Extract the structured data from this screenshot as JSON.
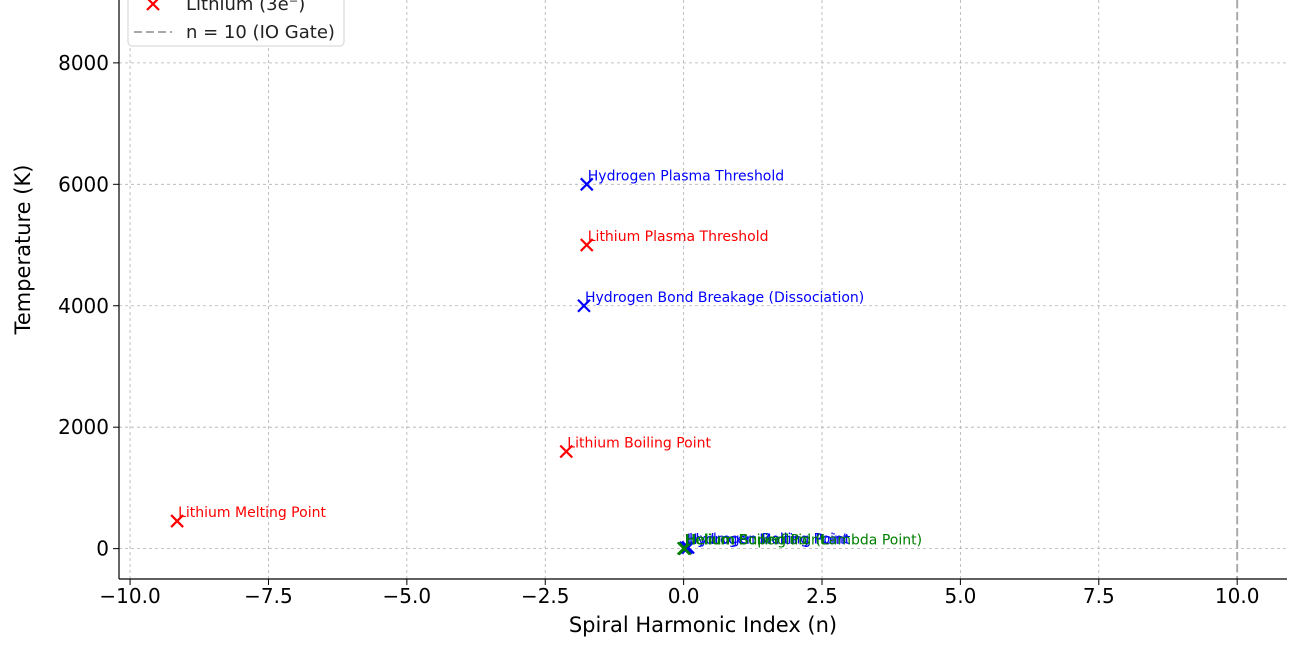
{
  "chart_data": {
    "type": "scatter",
    "xlabel": "Spiral Harmonic Index (n)",
    "ylabel": "Temperature (K)",
    "xlim": [
      -10.2,
      10.9
    ],
    "ylim": [
      -500,
      9200
    ],
    "x_ticks": [
      -10.0,
      -7.5,
      -5.0,
      -2.5,
      0.0,
      2.5,
      5.0,
      7.5,
      10.0
    ],
    "x_tick_labels": [
      "−10.0",
      "−7.5",
      "−5.0",
      "−2.5",
      "0.0",
      "2.5",
      "5.0",
      "7.5",
      "10.0"
    ],
    "y_ticks": [
      0,
      2000,
      4000,
      6000,
      8000
    ],
    "y_tick_labels": [
      "0",
      "2000",
      "4000",
      "6000",
      "8000"
    ],
    "grid": true,
    "legend_position": "top-left",
    "series": [
      {
        "name": "",
        "color": "#0000ff",
        "marker": "x",
        "points": [
          {
            "x": -1.75,
            "y": 6000,
            "label": "Hydrogen Plasma Threshold"
          },
          {
            "x": -1.8,
            "y": 4000,
            "label": "Hydrogen Bond Breakage (Dissociation)"
          },
          {
            "x": 0.08,
            "y": 20,
            "label": "Hydrogen Boiling Point"
          },
          {
            "x": 0.04,
            "y": 14,
            "label": "Hydrogen Melting Point"
          }
        ]
      },
      {
        "name": "Lithium (3e⁻)",
        "color": "#ff0000",
        "marker": "x",
        "points": [
          {
            "x": -1.75,
            "y": 5000,
            "label": "Lithium Plasma Threshold"
          },
          {
            "x": -2.12,
            "y": 1600,
            "label": "Lithium Boiling Point"
          },
          {
            "x": -9.15,
            "y": 454,
            "label": "Lithium Melting Point"
          }
        ]
      },
      {
        "name": "",
        "color": "#008000",
        "marker": "x",
        "points": [
          {
            "x": 0.0,
            "y": 4,
            "label": "Helium Boiling Point"
          },
          {
            "x": 0.02,
            "y": 1,
            "label": "Helium Superfluid (Lambda Point)"
          }
        ]
      }
    ],
    "reference_lines": [
      {
        "orientation": "vertical",
        "x": 10.0,
        "name": "n = 10 (IO Gate)",
        "color": "#aaaaaa",
        "style": "dashed"
      }
    ],
    "legend_entries": [
      {
        "label": "Lithium (3e⁻)",
        "color": "#ff0000",
        "marker": "x"
      },
      {
        "label": "n = 10 (IO Gate)",
        "color": "#aaaaaa",
        "marker": "dashed-line"
      }
    ]
  }
}
